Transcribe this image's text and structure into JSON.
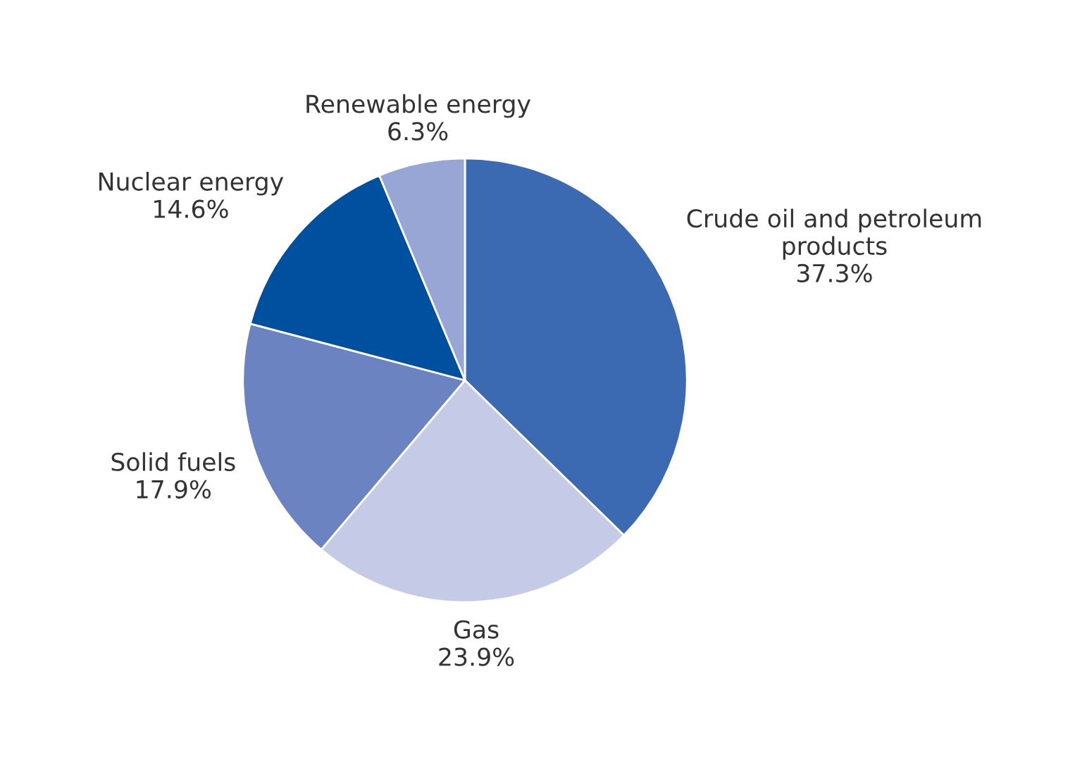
{
  "chart_data": {
    "type": "pie",
    "categories": [
      "Crude oil and petroleum\nproducts",
      "Gas",
      "Solid fuels",
      "Nuclear energy",
      "Renewable energy"
    ],
    "values": [
      37.3,
      23.9,
      17.9,
      14.6,
      6.3
    ],
    "colors": [
      "#3b6ab2",
      "#c5cae6",
      "#6b83c0",
      "#0050a0",
      "#97a6d4"
    ],
    "value_labels": [
      "37.3%",
      "23.9%",
      "17.9%",
      "14.6%",
      "6.3%"
    ]
  }
}
